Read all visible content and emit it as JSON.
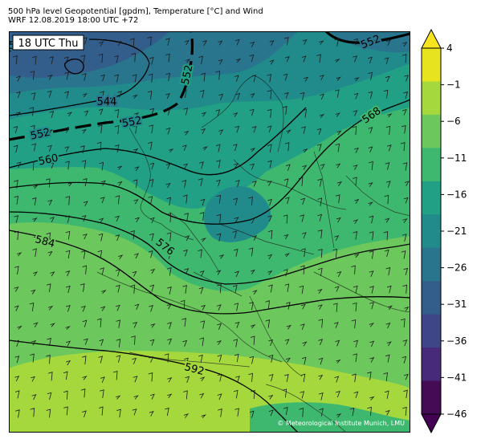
{
  "title_line1": "500 hPa level Geopotential [gpdm], Temperature [°C] and Wind",
  "title_line2": "WRF 12.08.2019 18:00 UTC +72",
  "time_label": "18 UTC Thu",
  "copyright": "© Meteorological Institute Munich, LMU",
  "contour_labels": [
    "552",
    "552",
    "552",
    "544",
    "552",
    "560",
    "568",
    "576",
    "584",
    "592"
  ],
  "colorbar": {
    "ticks": [
      "4",
      "−1",
      "−6",
      "−11",
      "−16",
      "−21",
      "−26",
      "−31",
      "−36",
      "−41",
      "−46"
    ],
    "colors": [
      "#e7e41f",
      "#a5d83c",
      "#6cc85c",
      "#3fb86f",
      "#21a085",
      "#218b8c",
      "#2a758e",
      "#335e8b",
      "#3e4688",
      "#472b7a",
      "#440c54"
    ]
  },
  "colors": {
    "temp_m11": "#3fb86f",
    "temp_m6": "#6cc85c",
    "temp_m1": "#a5d83c",
    "temp_m16": "#21a085",
    "temp_m21": "#218b8c",
    "temp_m26": "#2a758e",
    "temp_m31": "#335e8b"
  }
}
